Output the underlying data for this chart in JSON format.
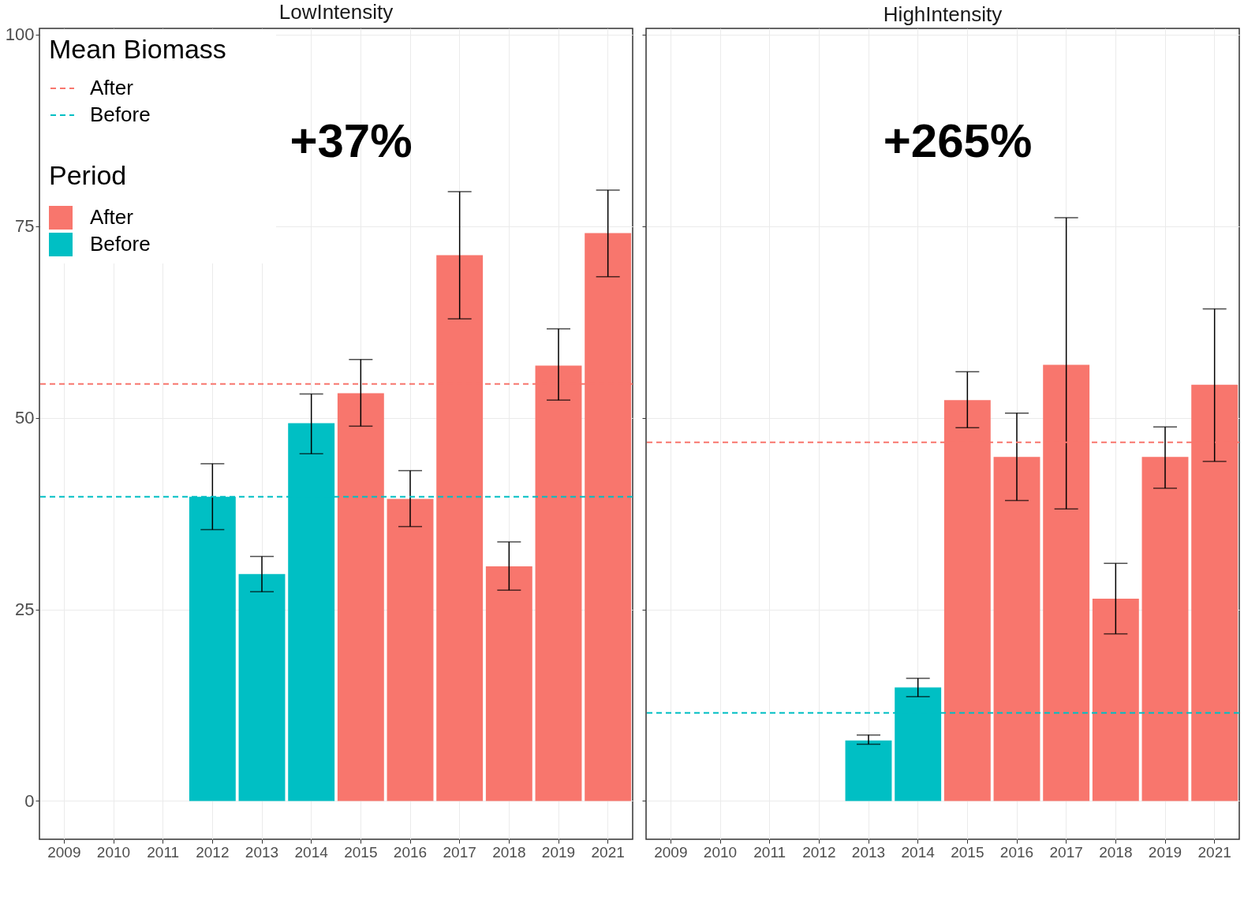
{
  "chart_data": [
    {
      "type": "bar",
      "title": "LowIntensity",
      "categories": [
        "2009",
        "2010",
        "2011",
        "2012",
        "2013",
        "2014",
        "2015",
        "2016",
        "2017",
        "2018",
        "2019",
        "2021"
      ],
      "series": [
        {
          "name": "After",
          "color": "#f8766d",
          "values": [
            null,
            null,
            null,
            null,
            null,
            null,
            53.2,
            39.4,
            71.2,
            30.6,
            56.8,
            74.1
          ],
          "errors": [
            null,
            null,
            null,
            null,
            null,
            null,
            [
              48.9,
              57.6
            ],
            [
              35.8,
              43.1
            ],
            [
              62.9,
              79.5
            ],
            [
              27.5,
              33.8
            ],
            [
              52.3,
              61.6
            ],
            [
              68.4,
              79.7
            ]
          ]
        },
        {
          "name": "Before",
          "color": "#00bfc4",
          "values": [
            null,
            null,
            null,
            39.7,
            29.6,
            49.3,
            null,
            null,
            null,
            null,
            null,
            null
          ],
          "errors": [
            null,
            null,
            null,
            [
              35.4,
              44.0
            ],
            [
              27.3,
              31.9
            ],
            [
              45.3,
              53.1
            ],
            null,
            null,
            null,
            null,
            null,
            null
          ]
        }
      ],
      "ref_lines": [
        {
          "axis": "y",
          "value": 54.4,
          "label": "After",
          "color": "#f8766d",
          "line_style": "dashed"
        },
        {
          "axis": "y",
          "value": 39.7,
          "label": "Before",
          "color": "#00bfc4",
          "line_style": "dashed"
        }
      ],
      "annotations": [
        "+37%",
        "Mean Biomass"
      ],
      "legend_title": "Period",
      "legend": "top left",
      "ylim": [
        -5,
        100.8
      ],
      "yticks": [
        0,
        25,
        50,
        75,
        100
      ],
      "grid": true
    },
    {
      "type": "bar",
      "title": "HighIntensity",
      "categories": [
        "2009",
        "2010",
        "2011",
        "2012",
        "2013",
        "2014",
        "2015",
        "2016",
        "2017",
        "2018",
        "2019",
        "2021"
      ],
      "series": [
        {
          "color": "#f8766d",
          "values": [
            null,
            null,
            null,
            null,
            null,
            null,
            52.3,
            44.9,
            56.9,
            26.4,
            44.9,
            54.3
          ],
          "errors": [
            null,
            null,
            null,
            null,
            null,
            null,
            [
              48.7,
              56.0
            ],
            [
              39.2,
              50.6
            ],
            [
              38.1,
              76.1
            ],
            [
              21.8,
              31.0
            ],
            [
              40.8,
              48.8
            ],
            [
              44.3,
              64.2
            ]
          ]
        },
        {
          "color": "#00bfc4",
          "values": [
            null,
            null,
            null,
            null,
            7.9,
            14.8,
            null,
            null,
            null,
            null,
            null,
            null
          ],
          "errors": [
            null,
            null,
            null,
            null,
            [
              7.4,
              8.6
            ],
            [
              13.6,
              16.0
            ],
            null,
            null,
            null,
            null,
            null,
            null
          ]
        }
      ],
      "ref_lines": [
        {
          "axis": "y",
          "value": 46.8,
          "color": "#f8766d",
          "line_style": "dashed"
        },
        {
          "axis": "y",
          "value": 11.5,
          "color": "#00bfc4",
          "line_style": "dashed"
        }
      ],
      "annotations": [
        "+265%"
      ],
      "ylim": [
        -5,
        100.8
      ],
      "yticks": [
        0,
        25,
        50,
        75,
        100
      ],
      "grid": true,
      "tick_labels": "x"
    }
  ]
}
